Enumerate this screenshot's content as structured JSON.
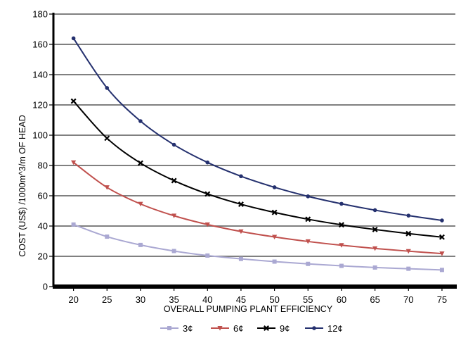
{
  "chart_data": {
    "type": "line",
    "title": "",
    "xlabel": "OVERALL PUMPING PLANT EFFICIENCY",
    "ylabel": "COST (US$) /1000m^3/m OF HEAD",
    "x": [
      20,
      25,
      30,
      35,
      40,
      45,
      50,
      55,
      60,
      65,
      70,
      75
    ],
    "xlim": [
      17,
      77
    ],
    "ylim": [
      0,
      180
    ],
    "yticks": [
      0,
      20,
      40,
      60,
      80,
      100,
      120,
      140,
      160,
      180
    ],
    "grid": true,
    "legend_position": "bottom",
    "series": [
      {
        "name": "3¢",
        "color": "#aaa8d2",
        "marker": "square",
        "values": [
          41,
          33,
          27.5,
          23.5,
          20.5,
          18.3,
          16.5,
          15,
          13.7,
          12.6,
          11.8,
          11
        ]
      },
      {
        "name": "6¢",
        "color": "#c0504d",
        "marker": "triangle-down",
        "values": [
          82,
          65.5,
          54.6,
          46.8,
          41,
          36.4,
          32.8,
          29.8,
          27.3,
          25.2,
          23.4,
          21.8
        ]
      },
      {
        "name": "9¢",
        "color": "#000000",
        "marker": "x",
        "values": [
          122.5,
          98,
          81.6,
          70,
          61.2,
          54.4,
          49,
          44.5,
          40.8,
          37.7,
          35,
          32.7
        ]
      },
      {
        "name": "12¢",
        "color": "#24306e",
        "marker": "circle",
        "values": [
          164,
          131.2,
          109.3,
          93.7,
          82,
          72.9,
          65.6,
          59.6,
          54.7,
          50.5,
          46.9,
          43.7
        ]
      }
    ]
  }
}
